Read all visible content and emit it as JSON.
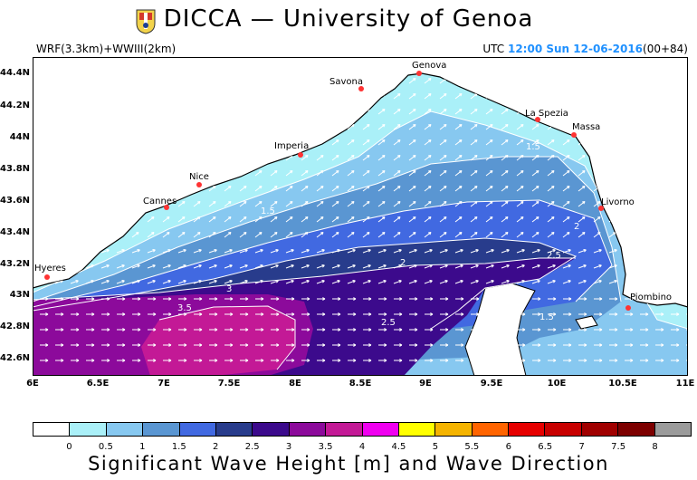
{
  "header": {
    "title": "DICCA — University of Genoa",
    "model": "WRF(3.3km)+WWIII(2km)",
    "utc_label": "UTC",
    "time": "12:00 Sun 12-06-2016",
    "forecast_step": "(00+84)"
  },
  "map": {
    "y_ticks": [
      "44.4N",
      "44.2N",
      "44N",
      "43.8N",
      "43.6N",
      "43.4N",
      "43.2N",
      "43N",
      "42.8N",
      "42.6N"
    ],
    "x_ticks": [
      "6E",
      "6.5E",
      "7E",
      "7.5E",
      "8E",
      "8.5E",
      "9E",
      "9.5E",
      "10E",
      "10.5E",
      "11E"
    ],
    "cities": [
      {
        "name": "Genova"
      },
      {
        "name": "Savona"
      },
      {
        "name": "La Spezia"
      },
      {
        "name": "Massa"
      },
      {
        "name": "Imperia"
      },
      {
        "name": "Nice"
      },
      {
        "name": "Cannes"
      },
      {
        "name": "Livorno"
      },
      {
        "name": "Hyeres"
      },
      {
        "name": "Piombino"
      }
    ],
    "contour_labels": [
      "1",
      "1.5",
      "1.5",
      "1.5",
      "2",
      "2",
      "2.5",
      "2.5",
      "3",
      "3.5"
    ]
  },
  "legend": {
    "title": "Significant Wave Height [m] and Wave Direction",
    "ticks": [
      "0",
      "0.5",
      "1",
      "1.5",
      "2",
      "2.5",
      "3",
      "3.5",
      "4",
      "4.5",
      "5",
      "5.5",
      "6",
      "6.5",
      "7",
      "7.5",
      "8"
    ],
    "colors": [
      "#ffffff",
      "#aaf0f8",
      "#87c8f0",
      "#5a96d2",
      "#4169e1",
      "#283c8c",
      "#3c0a8c",
      "#8c0a9b",
      "#c31996",
      "#f000f0",
      "#ffff00",
      "#f5b400",
      "#ff6400",
      "#e60000",
      "#c80000",
      "#a00000",
      "#7d0000",
      "#9b9b9b"
    ]
  }
}
